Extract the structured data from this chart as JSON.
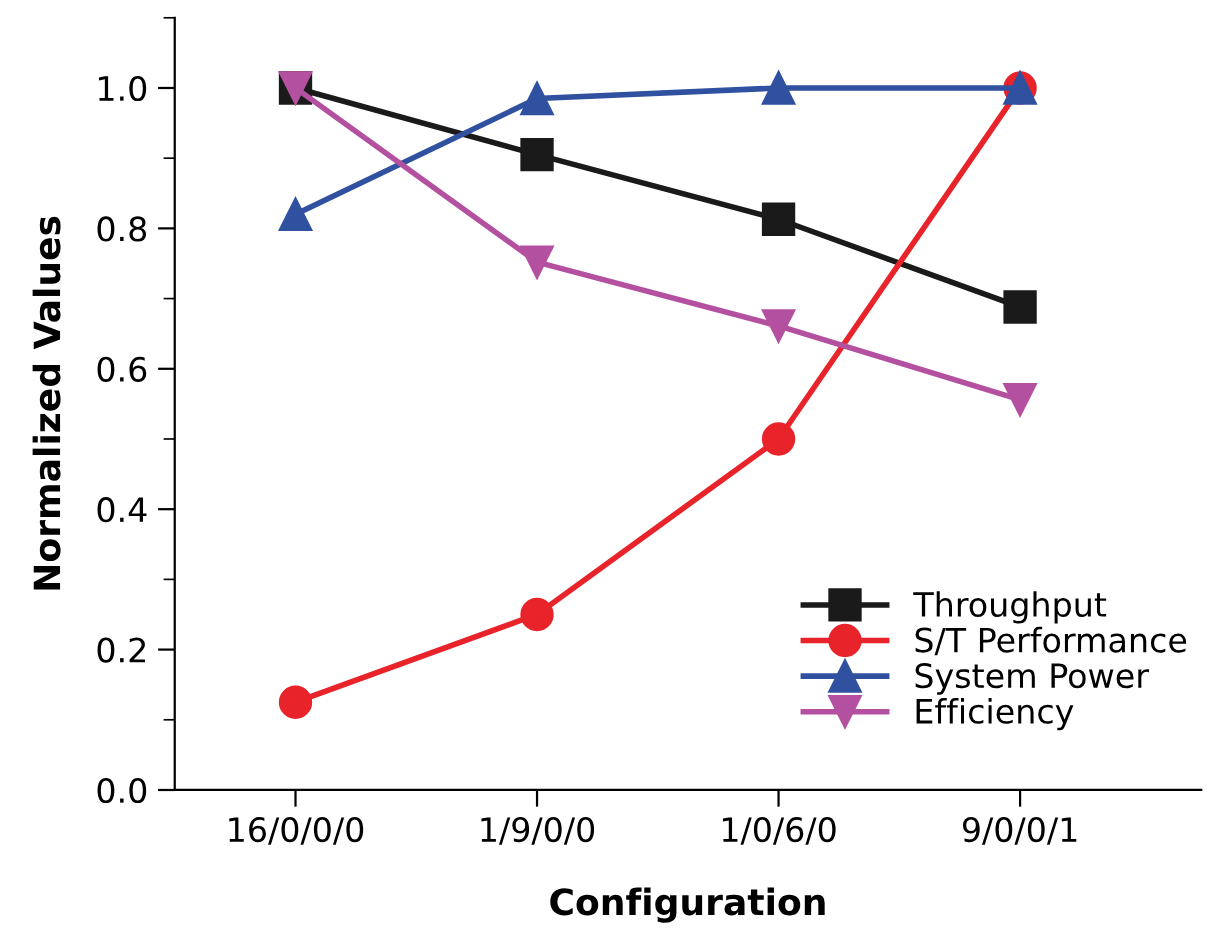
{
  "chart_data": {
    "type": "line",
    "xlabel": "Configuration",
    "ylabel": "Normalized Values",
    "categories": [
      "16/0/0/0",
      "1/9/0/0",
      "1/0/6/0",
      "9/0/0/1"
    ],
    "series": [
      {
        "name": "Throughput",
        "color": "#1a1a1a",
        "marker": "square",
        "values": [
          1.0,
          0.905,
          0.813,
          0.688
        ]
      },
      {
        "name": "S/T Performance",
        "color": "#e8232a",
        "marker": "circle",
        "values": [
          0.125,
          0.25,
          0.5,
          1.0
        ]
      },
      {
        "name": "System Power",
        "color": "#3050a0",
        "marker": "triangle",
        "values": [
          0.82,
          0.985,
          1.0,
          1.0
        ]
      },
      {
        "name": "Efficiency",
        "color": "#b450a0",
        "marker": "triangle_down",
        "values": [
          1.0,
          0.752,
          0.661,
          0.556
        ]
      }
    ],
    "ylim": [
      0,
      1.1
    ],
    "yticks": [
      {
        "value": 0,
        "label": "0.0"
      },
      0.2,
      0.4,
      0.6,
      0.8,
      {
        "value": 1,
        "label": "1.0"
      }
    ],
    "grid": false,
    "legend": "bottom right",
    "line_style": "solid"
  }
}
